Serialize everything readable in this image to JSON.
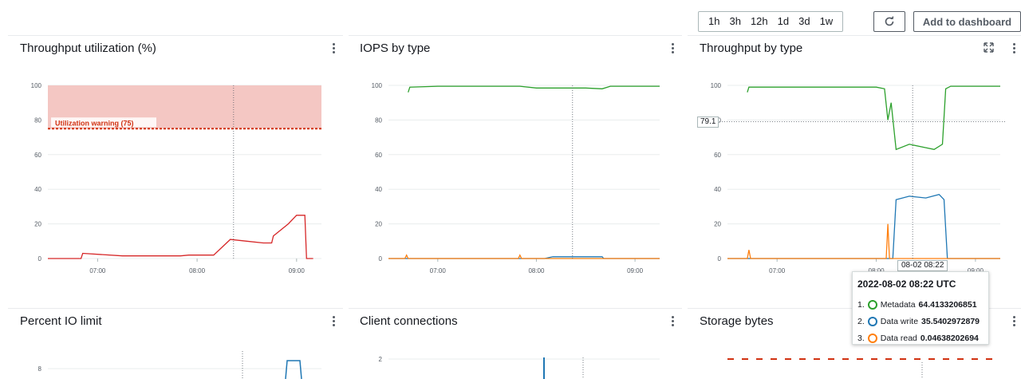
{
  "toolbar": {
    "ranges": [
      "1h",
      "3h",
      "12h",
      "1d",
      "3d",
      "1w"
    ],
    "refresh_icon": "refresh-icon",
    "add_label": "Add to dashboard"
  },
  "panels": [
    {
      "title": "Throughput utilization (%)"
    },
    {
      "title": "IOPS by type"
    },
    {
      "title": "Throughput by type"
    },
    {
      "title": "Percent IO limit"
    },
    {
      "title": "Client connections"
    },
    {
      "title": "Storage bytes"
    }
  ],
  "colors": {
    "metadata": "#2ca02c",
    "data_write": "#1f77b4",
    "data_read": "#ff7f0e",
    "utilization": "#d62728",
    "warning_fill": "#f4c7c3"
  },
  "annotation": {
    "warning_label": "Utilization warning (75)"
  },
  "crosshair": {
    "y_value": "79.1",
    "time_flag": "08-02 08:22"
  },
  "tooltip": {
    "title": "2022-08-02 08:22 UTC",
    "rows": [
      {
        "index": "1.",
        "name": "Metadata",
        "value": "64.4133206851",
        "color": "#2ca02c"
      },
      {
        "index": "2.",
        "name": "Data write",
        "value": "35.5402972879",
        "color": "#1f77b4"
      },
      {
        "index": "3.",
        "name": "Data read",
        "value": "0.04638202694",
        "color": "#ff7f0e"
      }
    ]
  },
  "chart_data": [
    {
      "type": "line",
      "title": "Throughput utilization (%)",
      "y_ticks": [
        "100",
        "80",
        "60",
        "40",
        "20",
        "0"
      ],
      "x_ticks": [
        "07:00",
        "08:00",
        "09:00"
      ],
      "ylim": [
        0,
        100
      ],
      "series": [
        {
          "name": "",
          "color": "#d62728",
          "x": [
            "06:30",
            "06:50",
            "06:51",
            "07:15",
            "07:40",
            "07:50",
            "07:55",
            "08:00",
            "08:05",
            "08:10",
            "08:20",
            "08:30",
            "08:40",
            "08:45",
            "08:46",
            "08:55",
            "09:00",
            "09:05",
            "09:06",
            "09:10"
          ],
          "values": [
            0,
            0,
            3,
            1.5,
            1.5,
            1.5,
            2,
            2,
            2,
            2,
            11,
            10,
            9,
            9,
            13,
            20,
            25,
            25,
            0,
            0
          ]
        }
      ],
      "threshold": {
        "value": 75,
        "label": "Utilization warning (75)"
      }
    },
    {
      "type": "line",
      "title": "IOPS by type",
      "y_ticks": [
        "100",
        "80",
        "60",
        "40",
        "20",
        "0"
      ],
      "x_ticks": [
        "07:00",
        "08:00",
        "09:00"
      ],
      "ylim": [
        0,
        100
      ],
      "series": [
        {
          "name": "Metadata",
          "color": "#2ca02c",
          "x": [
            "06:42",
            "06:43",
            "07:00",
            "07:50",
            "08:00",
            "08:20",
            "08:30",
            "08:40",
            "08:45",
            "09:15"
          ],
          "values": [
            96,
            99,
            99.5,
            99.5,
            98.5,
            98.5,
            98.5,
            98,
            99.5,
            99.5
          ]
        },
        {
          "name": "Data write",
          "color": "#1f77b4",
          "x": [
            "06:30",
            "07:50",
            "08:05",
            "08:10",
            "08:30",
            "08:40",
            "08:41",
            "09:15"
          ],
          "values": [
            0,
            0,
            0,
            1,
            1,
            1,
            0,
            0
          ]
        },
        {
          "name": "Data read",
          "color": "#ff7f0e",
          "x": [
            "06:30",
            "06:40",
            "06:41",
            "06:42",
            "07:49",
            "07:50",
            "07:51",
            "09:15"
          ],
          "values": [
            0,
            0,
            2,
            0,
            0,
            2,
            0,
            0
          ]
        }
      ]
    },
    {
      "type": "line",
      "title": "Throughput by type",
      "y_ticks": [
        "100",
        "80",
        "60",
        "40",
        "20",
        "0"
      ],
      "x_ticks": [
        "07:00",
        "08:00",
        "09:00"
      ],
      "ylim": [
        0,
        100
      ],
      "series": [
        {
          "name": "Metadata",
          "color": "#2ca02c",
          "x": [
            "06:42",
            "06:43",
            "07:30",
            "08:00",
            "08:05",
            "08:07",
            "08:09",
            "08:12",
            "08:20",
            "08:30",
            "08:35",
            "08:40",
            "08:42",
            "08:45",
            "09:15"
          ],
          "values": [
            96,
            99,
            99,
            99,
            98,
            80,
            90,
            63,
            66,
            64,
            63,
            66,
            98,
            99.5,
            99.5
          ]
        },
        {
          "name": "Data write",
          "color": "#1f77b4",
          "x": [
            "06:30",
            "08:10",
            "08:12",
            "08:20",
            "08:30",
            "08:38",
            "08:41",
            "08:43",
            "09:15"
          ],
          "values": [
            0,
            0,
            34,
            36,
            35,
            37,
            34,
            0,
            0
          ]
        },
        {
          "name": "Data read",
          "color": "#ff7f0e",
          "x": [
            "06:30",
            "06:42",
            "06:43",
            "06:44",
            "08:06",
            "08:07",
            "08:08",
            "08:10",
            "08:30",
            "08:40",
            "09:15"
          ],
          "values": [
            0,
            0,
            5,
            0,
            0,
            20,
            0,
            0,
            0,
            0,
            0
          ]
        }
      ]
    },
    {
      "type": "line",
      "title": "Percent IO limit",
      "y_ticks": [
        "8"
      ],
      "series": []
    },
    {
      "type": "line",
      "title": "Client connections",
      "y_ticks": [
        "2"
      ],
      "series": []
    }
  ]
}
